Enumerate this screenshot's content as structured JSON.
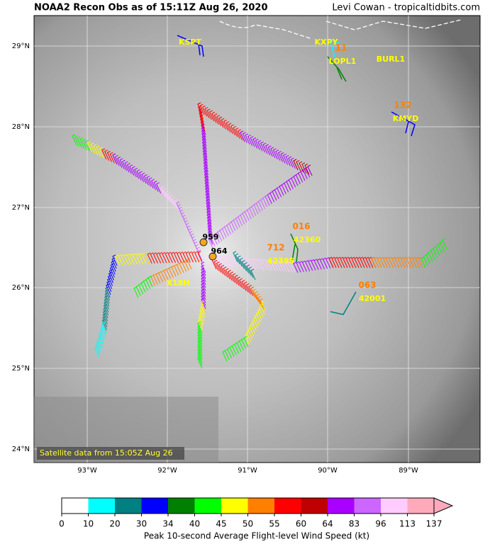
{
  "header": {
    "title": "NOAA2 Recon Obs as of 15:11Z Aug 26, 2020",
    "credit": "Levi Cowan - tropicaltidbits.com"
  },
  "map": {
    "lat_labels": [
      "29°N",
      "28°N",
      "27°N",
      "26°N",
      "25°N",
      "24°N"
    ],
    "lon_labels": [
      "93°W",
      "92°W",
      "91°W",
      "90°W",
      "89°W"
    ],
    "station_labels": [
      "KSPT",
      "KXPY",
      "LOPL1",
      "BURL1",
      "KMYD",
      "X18H",
      "42360",
      "42395",
      "42001"
    ],
    "wind_labels": [
      "11",
      "132",
      "016",
      "712",
      "063"
    ],
    "pressure_labels": [
      "959",
      "964"
    ],
    "note": "Satellite data from 15:05Z Aug 26"
  },
  "colorbar": {
    "ticks": [
      0,
      10,
      20,
      30,
      34,
      40,
      45,
      50,
      55,
      60,
      64,
      83,
      96,
      113,
      137
    ],
    "colors": [
      "#ffffff",
      "#00ffff",
      "#008080",
      "#0000ff",
      "#008000",
      "#00ff00",
      "#ffff00",
      "#ff8000",
      "#ff0000",
      "#c00000",
      "#aa00ff",
      "#cc66ff",
      "#ffccff",
      "#ffaabb"
    ],
    "label": "Peak 10-second Average Flight-level Wind Speed (kt)"
  }
}
